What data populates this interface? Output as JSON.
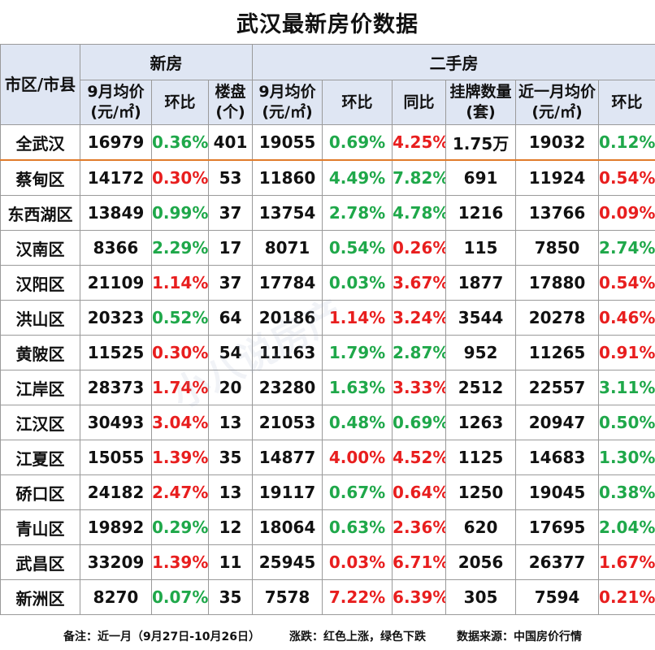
{
  "title": "武汉最新房价数据",
  "header": {
    "corner": "市区/市县",
    "new_group": "新房",
    "second_group": "二手房",
    "new_cols": [
      "9月均价(元/㎡)",
      "环比",
      "楼盘(个)"
    ],
    "second_cols": [
      "9月均价(元/㎡)",
      "环比",
      "同比",
      "挂牌数量(套)",
      "近一月均价(元/㎡)",
      "环比"
    ]
  },
  "trend_colors": {
    "up": "#e81e1e",
    "down": "#1fa84a"
  },
  "rows": [
    {
      "name": "全武汉",
      "new_price": "16979",
      "new_mom": "0.36%",
      "new_mom_dir": "down",
      "projects": "401",
      "sh_price": "19055",
      "sh_mom": "0.69%",
      "sh_mom_dir": "down",
      "sh_yoy": "4.25%",
      "sh_yoy_dir": "up",
      "listings": "1.75万",
      "recent_price": "19032",
      "recent_mom": "0.12%",
      "recent_mom_dir": "down"
    },
    {
      "name": "蔡甸区",
      "new_price": "14172",
      "new_mom": "0.30%",
      "new_mom_dir": "up",
      "projects": "53",
      "sh_price": "11860",
      "sh_mom": "4.49%",
      "sh_mom_dir": "down",
      "sh_yoy": "7.82%",
      "sh_yoy_dir": "down",
      "listings": "691",
      "recent_price": "11924",
      "recent_mom": "0.54%",
      "recent_mom_dir": "up"
    },
    {
      "name": "东西湖区",
      "new_price": "13849",
      "new_mom": "0.99%",
      "new_mom_dir": "down",
      "projects": "37",
      "sh_price": "13754",
      "sh_mom": "2.78%",
      "sh_mom_dir": "down",
      "sh_yoy": "4.78%",
      "sh_yoy_dir": "down",
      "listings": "1216",
      "recent_price": "13766",
      "recent_mom": "0.09%",
      "recent_mom_dir": "up"
    },
    {
      "name": "汉南区",
      "new_price": "8366",
      "new_mom": "2.29%",
      "new_mom_dir": "down",
      "projects": "17",
      "sh_price": "8071",
      "sh_mom": "0.54%",
      "sh_mom_dir": "down",
      "sh_yoy": "0.26%",
      "sh_yoy_dir": "up",
      "listings": "115",
      "recent_price": "7850",
      "recent_mom": "2.74%",
      "recent_mom_dir": "down"
    },
    {
      "name": "汉阳区",
      "new_price": "21109",
      "new_mom": "1.14%",
      "new_mom_dir": "up",
      "projects": "37",
      "sh_price": "17784",
      "sh_mom": "0.03%",
      "sh_mom_dir": "down",
      "sh_yoy": "3.67%",
      "sh_yoy_dir": "up",
      "listings": "1877",
      "recent_price": "17880",
      "recent_mom": "0.54%",
      "recent_mom_dir": "up"
    },
    {
      "name": "洪山区",
      "new_price": "20323",
      "new_mom": "0.52%",
      "new_mom_dir": "down",
      "projects": "64",
      "sh_price": "20186",
      "sh_mom": "1.14%",
      "sh_mom_dir": "up",
      "sh_yoy": "3.24%",
      "sh_yoy_dir": "up",
      "listings": "3544",
      "recent_price": "20278",
      "recent_mom": "0.46%",
      "recent_mom_dir": "up"
    },
    {
      "name": "黄陂区",
      "new_price": "11525",
      "new_mom": "0.30%",
      "new_mom_dir": "up",
      "projects": "54",
      "sh_price": "11163",
      "sh_mom": "1.79%",
      "sh_mom_dir": "down",
      "sh_yoy": "2.87%",
      "sh_yoy_dir": "down",
      "listings": "952",
      "recent_price": "11265",
      "recent_mom": "0.91%",
      "recent_mom_dir": "up"
    },
    {
      "name": "江岸区",
      "new_price": "28373",
      "new_mom": "1.74%",
      "new_mom_dir": "up",
      "projects": "20",
      "sh_price": "23280",
      "sh_mom": "1.63%",
      "sh_mom_dir": "down",
      "sh_yoy": "3.33%",
      "sh_yoy_dir": "up",
      "listings": "2512",
      "recent_price": "22557",
      "recent_mom": "3.11%",
      "recent_mom_dir": "down"
    },
    {
      "name": "江汉区",
      "new_price": "30493",
      "new_mom": "3.04%",
      "new_mom_dir": "up",
      "projects": "13",
      "sh_price": "21053",
      "sh_mom": "0.48%",
      "sh_mom_dir": "down",
      "sh_yoy": "0.69%",
      "sh_yoy_dir": "down",
      "listings": "1263",
      "recent_price": "20947",
      "recent_mom": "0.50%",
      "recent_mom_dir": "down"
    },
    {
      "name": "江夏区",
      "new_price": "15055",
      "new_mom": "1.39%",
      "new_mom_dir": "up",
      "projects": "35",
      "sh_price": "14877",
      "sh_mom": "4.00%",
      "sh_mom_dir": "up",
      "sh_yoy": "4.52%",
      "sh_yoy_dir": "up",
      "listings": "1125",
      "recent_price": "14683",
      "recent_mom": "1.30%",
      "recent_mom_dir": "down"
    },
    {
      "name": "硚口区",
      "new_price": "24182",
      "new_mom": "2.47%",
      "new_mom_dir": "up",
      "projects": "13",
      "sh_price": "19117",
      "sh_mom": "0.67%",
      "sh_mom_dir": "down",
      "sh_yoy": "0.64%",
      "sh_yoy_dir": "up",
      "listings": "1250",
      "recent_price": "19045",
      "recent_mom": "0.38%",
      "recent_mom_dir": "down"
    },
    {
      "name": "青山区",
      "new_price": "19892",
      "new_mom": "0.29%",
      "new_mom_dir": "down",
      "projects": "12",
      "sh_price": "18064",
      "sh_mom": "0.63%",
      "sh_mom_dir": "down",
      "sh_yoy": "2.36%",
      "sh_yoy_dir": "up",
      "listings": "620",
      "recent_price": "17695",
      "recent_mom": "2.04%",
      "recent_mom_dir": "down"
    },
    {
      "name": "武昌区",
      "new_price": "33209",
      "new_mom": "1.39%",
      "new_mom_dir": "up",
      "projects": "11",
      "sh_price": "25945",
      "sh_mom": "0.03%",
      "sh_mom_dir": "up",
      "sh_yoy": "6.71%",
      "sh_yoy_dir": "up",
      "listings": "2056",
      "recent_price": "26377",
      "recent_mom": "1.67%",
      "recent_mom_dir": "up"
    },
    {
      "name": "新洲区",
      "new_price": "8270",
      "new_mom": "0.07%",
      "new_mom_dir": "down",
      "projects": "35",
      "sh_price": "7578",
      "sh_mom": "7.22%",
      "sh_mom_dir": "up",
      "sh_yoy": "6.39%",
      "sh_yoy_dir": "up",
      "listings": "305",
      "recent_price": "7594",
      "recent_mom": "0.21%",
      "recent_mom_dir": "up"
    }
  ],
  "footer": {
    "note": "备注：近一月（9月27日-10月26日）",
    "legend": "涨跌：红色上涨，绿色下跌",
    "source": "数据来源：中国房价行情"
  },
  "watermark": "小八说房产"
}
